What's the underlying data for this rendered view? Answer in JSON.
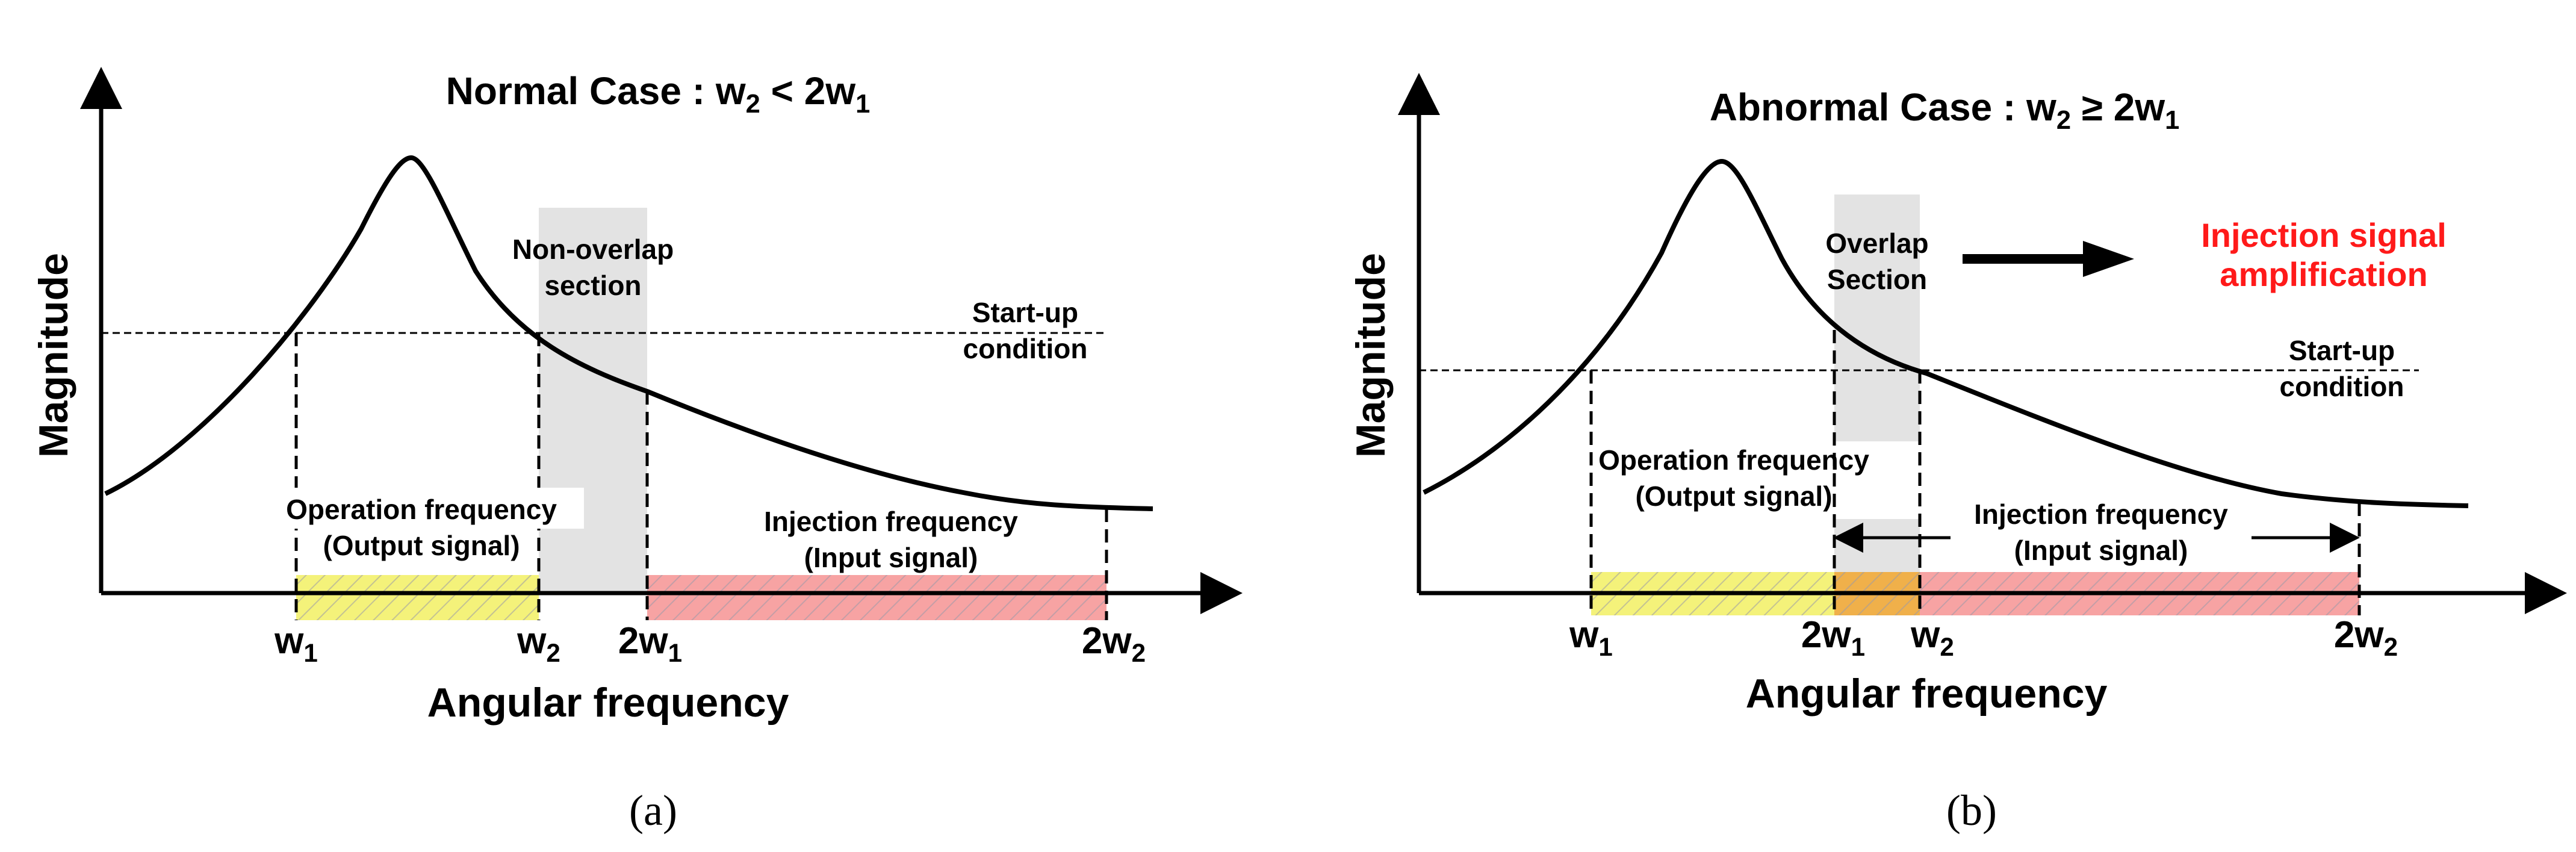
{
  "panels": [
    {
      "title_main": "Normal Case : w",
      "title_sub2": "2",
      "title_mid": " < 2w",
      "title_sub1": "1",
      "ylabel": "Magnitude",
      "xlabel": "Angular frequency",
      "section_line1": "Non-overlap",
      "section_line2": "section",
      "startup_line1": "Start-up",
      "startup_line2": "condition",
      "op_line1": "Operation frequency",
      "op_line2": "(Output signal)",
      "inj_line1": "Injection frequency",
      "inj_line2": "(Input signal)",
      "ticks": [
        {
          "base": "w",
          "sub": "1"
        },
        {
          "base": "w",
          "sub": "2"
        },
        {
          "base": "2w",
          "sub": "1"
        },
        {
          "base": "2w",
          "sub": "2"
        }
      ],
      "caption": "(a)"
    },
    {
      "title_main": "Abnormal Case : w",
      "title_sub2": "2",
      "title_mid": " ≥ 2w",
      "title_sub1": "1",
      "ylabel": "Magnitude",
      "xlabel": "Angular frequency",
      "section_line1": "Overlap",
      "section_line2": "Section",
      "startup_line1": "Start-up",
      "startup_line2": "condition",
      "op_line1": "Operation frequency",
      "op_line2": "(Output signal)",
      "inj_line1": "Injection frequency",
      "inj_line2": "(Input signal)",
      "amp_line1": "Injection signal",
      "amp_line2": "amplification",
      "ticks": [
        {
          "base": "w",
          "sub": "1"
        },
        {
          "base": "2w",
          "sub": "1"
        },
        {
          "base": "w",
          "sub": "2"
        },
        {
          "base": "2w",
          "sub": "2"
        }
      ],
      "caption": "(b)"
    }
  ],
  "colors": {
    "yellow_band": "#f4f27a",
    "red_band": "#f7a3a3",
    "orange_overlap": "#f0b04a",
    "gray_section": "#e3e3e3",
    "amplification_text": "#ff1a1a"
  }
}
